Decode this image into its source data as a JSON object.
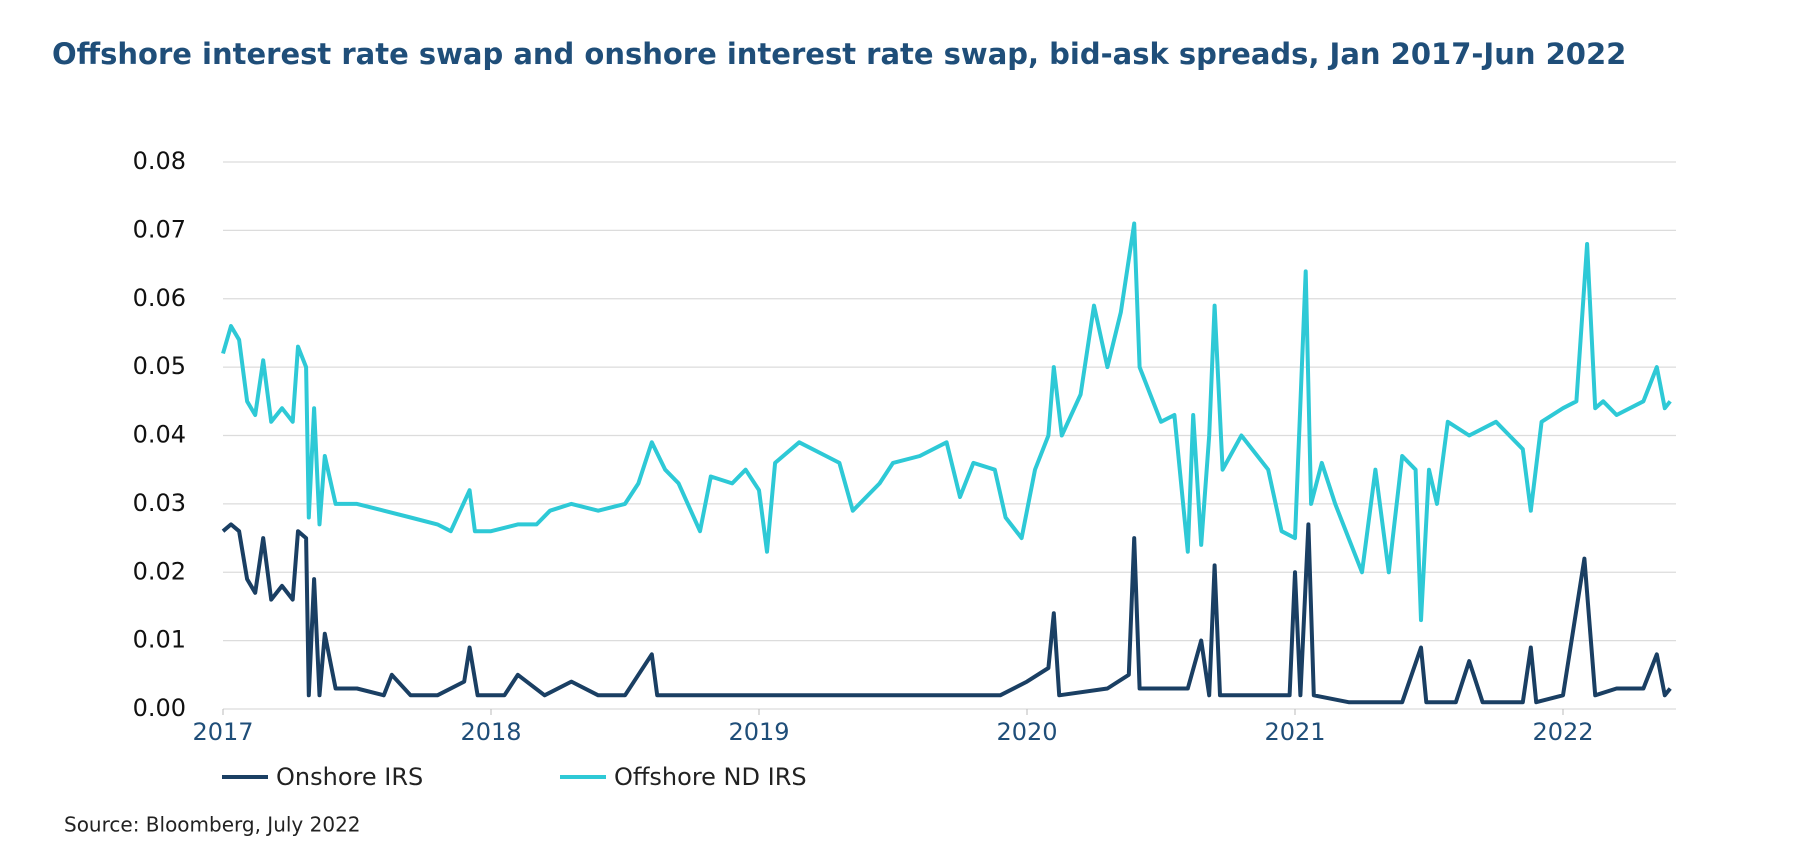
{
  "chart_data": {
    "type": "line",
    "title": "Offshore interest rate swap and onshore interest rate swap, bid-ask spreads, Jan 2017-Jun 2022",
    "source": "Source: Bloomberg, July 2022",
    "xlim": [
      2017,
      2022.42
    ],
    "xticks": [
      2017,
      2018,
      2019,
      2020,
      2021,
      2022
    ],
    "ylim": [
      0,
      0.08
    ],
    "yticks": [
      {
        "value": 0,
        "label": "0.00"
      },
      0.01,
      0.02,
      0.03,
      0.04,
      0.05,
      0.06,
      0.07,
      0.08
    ],
    "grid": true,
    "series": [
      {
        "name": "Onshore IRS",
        "color": "#1a3f63",
        "x": [
          2017.0,
          2017.03,
          2017.06,
          2017.09,
          2017.12,
          2017.15,
          2017.18,
          2017.22,
          2017.26,
          2017.28,
          2017.31,
          2017.32,
          2017.34,
          2017.36,
          2017.38,
          2017.42,
          2017.5,
          2017.6,
          2017.63,
          2017.7,
          2017.8,
          2017.9,
          2017.92,
          2017.95,
          2018.05,
          2018.1,
          2018.2,
          2018.3,
          2018.4,
          2018.5,
          2018.6,
          2018.62,
          2018.8,
          2019.0,
          2019.3,
          2019.5,
          2019.7,
          2019.9,
          2020.0,
          2020.08,
          2020.1,
          2020.12,
          2020.3,
          2020.38,
          2020.4,
          2020.42,
          2020.6,
          2020.65,
          2020.68,
          2020.7,
          2020.72,
          2020.9,
          2020.98,
          2021.0,
          2021.02,
          2021.05,
          2021.07,
          2021.2,
          2021.4,
          2021.47,
          2021.49,
          2021.6,
          2021.65,
          2021.7,
          2021.85,
          2021.88,
          2021.9,
          2022.0,
          2022.08,
          2022.12,
          2022.2,
          2022.3,
          2022.35,
          2022.38,
          2022.4
        ],
        "values": [
          0.026,
          0.027,
          0.026,
          0.019,
          0.017,
          0.025,
          0.016,
          0.018,
          0.016,
          0.026,
          0.025,
          0.002,
          0.019,
          0.002,
          0.011,
          0.003,
          0.003,
          0.002,
          0.005,
          0.002,
          0.002,
          0.004,
          0.009,
          0.002,
          0.002,
          0.005,
          0.002,
          0.004,
          0.002,
          0.002,
          0.008,
          0.002,
          0.002,
          0.002,
          0.002,
          0.002,
          0.002,
          0.002,
          0.004,
          0.006,
          0.014,
          0.002,
          0.003,
          0.005,
          0.025,
          0.003,
          0.003,
          0.01,
          0.002,
          0.021,
          0.002,
          0.002,
          0.002,
          0.02,
          0.002,
          0.027,
          0.002,
          0.001,
          0.001,
          0.009,
          0.001,
          0.001,
          0.007,
          0.001,
          0.001,
          0.009,
          0.001,
          0.002,
          0.022,
          0.002,
          0.003,
          0.003,
          0.008,
          0.002,
          0.003
        ]
      },
      {
        "name": "Offshore ND IRS",
        "color": "#2ec9d6",
        "x": [
          2017.0,
          2017.03,
          2017.06,
          2017.09,
          2017.12,
          2017.15,
          2017.18,
          2017.22,
          2017.26,
          2017.28,
          2017.31,
          2017.32,
          2017.34,
          2017.36,
          2017.38,
          2017.42,
          2017.5,
          2017.6,
          2017.7,
          2017.8,
          2017.85,
          2017.92,
          2017.94,
          2018.0,
          2018.1,
          2018.17,
          2018.22,
          2018.3,
          2018.4,
          2018.5,
          2018.55,
          2018.6,
          2018.65,
          2018.7,
          2018.78,
          2018.82,
          2018.9,
          2018.95,
          2019.0,
          2019.03,
          2019.06,
          2019.15,
          2019.25,
          2019.3,
          2019.35,
          2019.45,
          2019.5,
          2019.6,
          2019.7,
          2019.75,
          2019.8,
          2019.88,
          2019.92,
          2019.98,
          2020.03,
          2020.08,
          2020.1,
          2020.13,
          2020.2,
          2020.25,
          2020.3,
          2020.35,
          2020.4,
          2020.42,
          2020.46,
          2020.5,
          2020.55,
          2020.6,
          2020.62,
          2020.65,
          2020.68,
          2020.7,
          2020.73,
          2020.8,
          2020.9,
          2020.95,
          2021.0,
          2021.04,
          2021.06,
          2021.1,
          2021.15,
          2021.2,
          2021.25,
          2021.3,
          2021.35,
          2021.4,
          2021.45,
          2021.47,
          2021.5,
          2021.53,
          2021.57,
          2021.65,
          2021.75,
          2021.8,
          2021.85,
          2021.88,
          2021.92,
          2022.0,
          2022.05,
          2022.09,
          2022.12,
          2022.15,
          2022.2,
          2022.3,
          2022.35,
          2022.38,
          2022.4
        ],
        "values": [
          0.052,
          0.056,
          0.054,
          0.045,
          0.043,
          0.051,
          0.042,
          0.044,
          0.042,
          0.053,
          0.05,
          0.028,
          0.044,
          0.027,
          0.037,
          0.03,
          0.03,
          0.029,
          0.028,
          0.027,
          0.026,
          0.032,
          0.026,
          0.026,
          0.027,
          0.027,
          0.029,
          0.03,
          0.029,
          0.03,
          0.033,
          0.039,
          0.035,
          0.033,
          0.026,
          0.034,
          0.033,
          0.035,
          0.032,
          0.023,
          0.036,
          0.039,
          0.037,
          0.036,
          0.029,
          0.033,
          0.036,
          0.037,
          0.039,
          0.031,
          0.036,
          0.035,
          0.028,
          0.025,
          0.035,
          0.04,
          0.05,
          0.04,
          0.046,
          0.059,
          0.05,
          0.058,
          0.071,
          0.05,
          0.046,
          0.042,
          0.043,
          0.023,
          0.043,
          0.024,
          0.04,
          0.059,
          0.035,
          0.04,
          0.035,
          0.026,
          0.025,
          0.064,
          0.03,
          0.036,
          0.03,
          0.025,
          0.02,
          0.035,
          0.02,
          0.037,
          0.035,
          0.013,
          0.035,
          0.03,
          0.042,
          0.04,
          0.042,
          0.04,
          0.038,
          0.029,
          0.042,
          0.044,
          0.045,
          0.068,
          0.044,
          0.045,
          0.043,
          0.045,
          0.05,
          0.044,
          0.045
        ]
      }
    ]
  }
}
